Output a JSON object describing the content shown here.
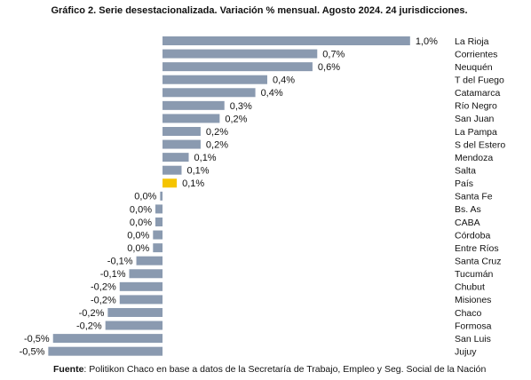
{
  "chart_data": {
    "type": "bar",
    "orientation": "horizontal",
    "title": "Gráfico 2. Serie desestacionalizada. Variación % mensual. Agosto 2024. 24 jurisdicciones.",
    "categories": [
      "La Rioja",
      "Corrientes",
      "Neuquén",
      "T del Fuego",
      "Catamarca",
      "Río Negro",
      "San Juan",
      "La Pampa",
      "S del Estero",
      "Mendoza",
      "Salta",
      "País",
      "Santa Fe",
      "Bs. As",
      "CABA",
      "Córdoba",
      "Entre Ríos",
      "Santa Cruz",
      "Tucumán",
      "Chubut",
      "Misiones",
      "Chaco",
      "Formosa",
      "San Luis",
      "Jujuy"
    ],
    "values": [
      1.04,
      0.65,
      0.63,
      0.44,
      0.39,
      0.26,
      0.24,
      0.16,
      0.16,
      0.11,
      0.08,
      0.06,
      -0.01,
      -0.03,
      -0.03,
      -0.04,
      -0.04,
      -0.11,
      -0.14,
      -0.18,
      -0.18,
      -0.23,
      -0.24,
      -0.46,
      -0.48
    ],
    "value_labels": [
      "1,0%",
      "0,7%",
      "0,6%",
      "0,4%",
      "0,4%",
      "0,3%",
      "0,2%",
      "0,2%",
      "0,2%",
      "0,1%",
      "0,1%",
      "0,1%",
      "0,0%",
      "0,0%",
      "0,0%",
      "0,0%",
      "0,0%",
      "-0,1%",
      "-0,1%",
      "-0,2%",
      "-0,2%",
      "-0,2%",
      "-0,2%",
      "-0,5%",
      "-0,5%"
    ],
    "colors": [
      "#8a9ab0",
      "#8a9ab0",
      "#8a9ab0",
      "#8a9ab0",
      "#8a9ab0",
      "#8a9ab0",
      "#8a9ab0",
      "#8a9ab0",
      "#8a9ab0",
      "#8a9ab0",
      "#8a9ab0",
      "#f5c400",
      "#8a9ab0",
      "#8a9ab0",
      "#8a9ab0",
      "#8a9ab0",
      "#8a9ab0",
      "#8a9ab0",
      "#8a9ab0",
      "#8a9ab0",
      "#8a9ab0",
      "#8a9ab0",
      "#8a9ab0",
      "#8a9ab0",
      "#8a9ab0"
    ],
    "xlim": [
      -0.5,
      1.05
    ],
    "source_label": "Fuente",
    "source": ": Politikon Chaco en base a datos de la Secretaría de Trabajo, Empleo y Seg. Social de la Nación"
  }
}
